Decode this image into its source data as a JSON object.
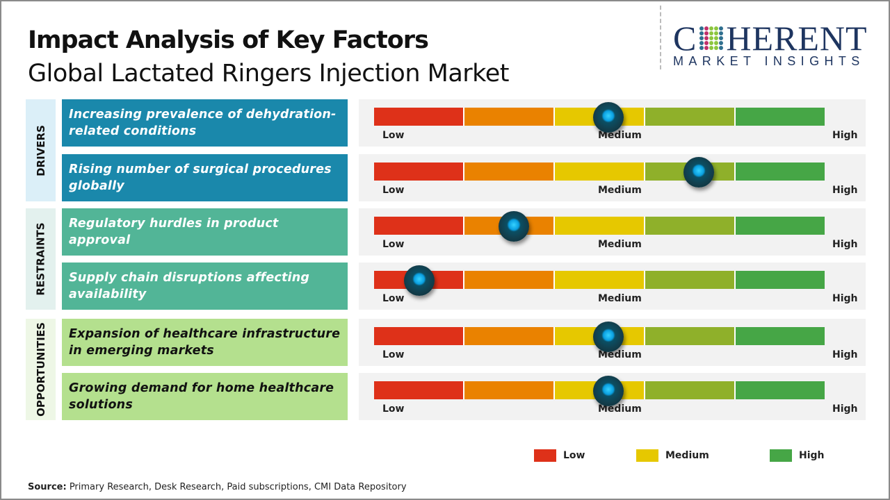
{
  "header": {
    "title": "Impact Analysis of Key Factors",
    "subtitle": "Global Lactated Ringers Injection Market"
  },
  "logo": {
    "line1_a": "C",
    "line1_b": "HERENT",
    "line2": "MARKET INSIGHTS"
  },
  "chart_data": {
    "type": "gauge-bars",
    "scale_labels": [
      "Low",
      "Medium",
      "High"
    ],
    "segment_colors": [
      "#de3119",
      "#ea8200",
      "#e6c800",
      "#8fb02a",
      "#46a646"
    ],
    "categories": [
      {
        "name": "DRIVERS",
        "box_color": "#1a88ab",
        "bg_color": "#dbeff8",
        "text_color": "#ffffff",
        "factors": [
          {
            "label": "Increasing prevalence of dehydration-related conditions",
            "impact": 0.52
          },
          {
            "label": "Rising number of surgical procedures globally",
            "impact": 0.72
          }
        ]
      },
      {
        "name": "RESTRAINTS",
        "box_color": "#52b597",
        "bg_color": "#e3f1ee",
        "text_color": "#ffffff",
        "factors": [
          {
            "label": "Regulatory hurdles in product approval",
            "impact": 0.31
          },
          {
            "label": "Supply chain disruptions affecting availability",
            "impact": 0.1
          }
        ]
      },
      {
        "name": "OPPORTUNITIES",
        "box_color": "#b4e08e",
        "bg_color": "#eef7e6",
        "text_color": "#111111",
        "factors": [
          {
            "label": "Expansion of healthcare infrastructure in emerging markets",
            "impact": 0.52
          },
          {
            "label": "Growing demand for home healthcare solutions",
            "impact": 0.52
          }
        ]
      }
    ],
    "legend": [
      {
        "label": "Low",
        "color": "#de3119"
      },
      {
        "label": "Medium",
        "color": "#e6c800"
      },
      {
        "label": "High",
        "color": "#46a646"
      }
    ]
  },
  "footer": {
    "source_label": "Source:",
    "source_text": " Primary Research, Desk Research, Paid subscriptions, CMI Data Repository"
  }
}
